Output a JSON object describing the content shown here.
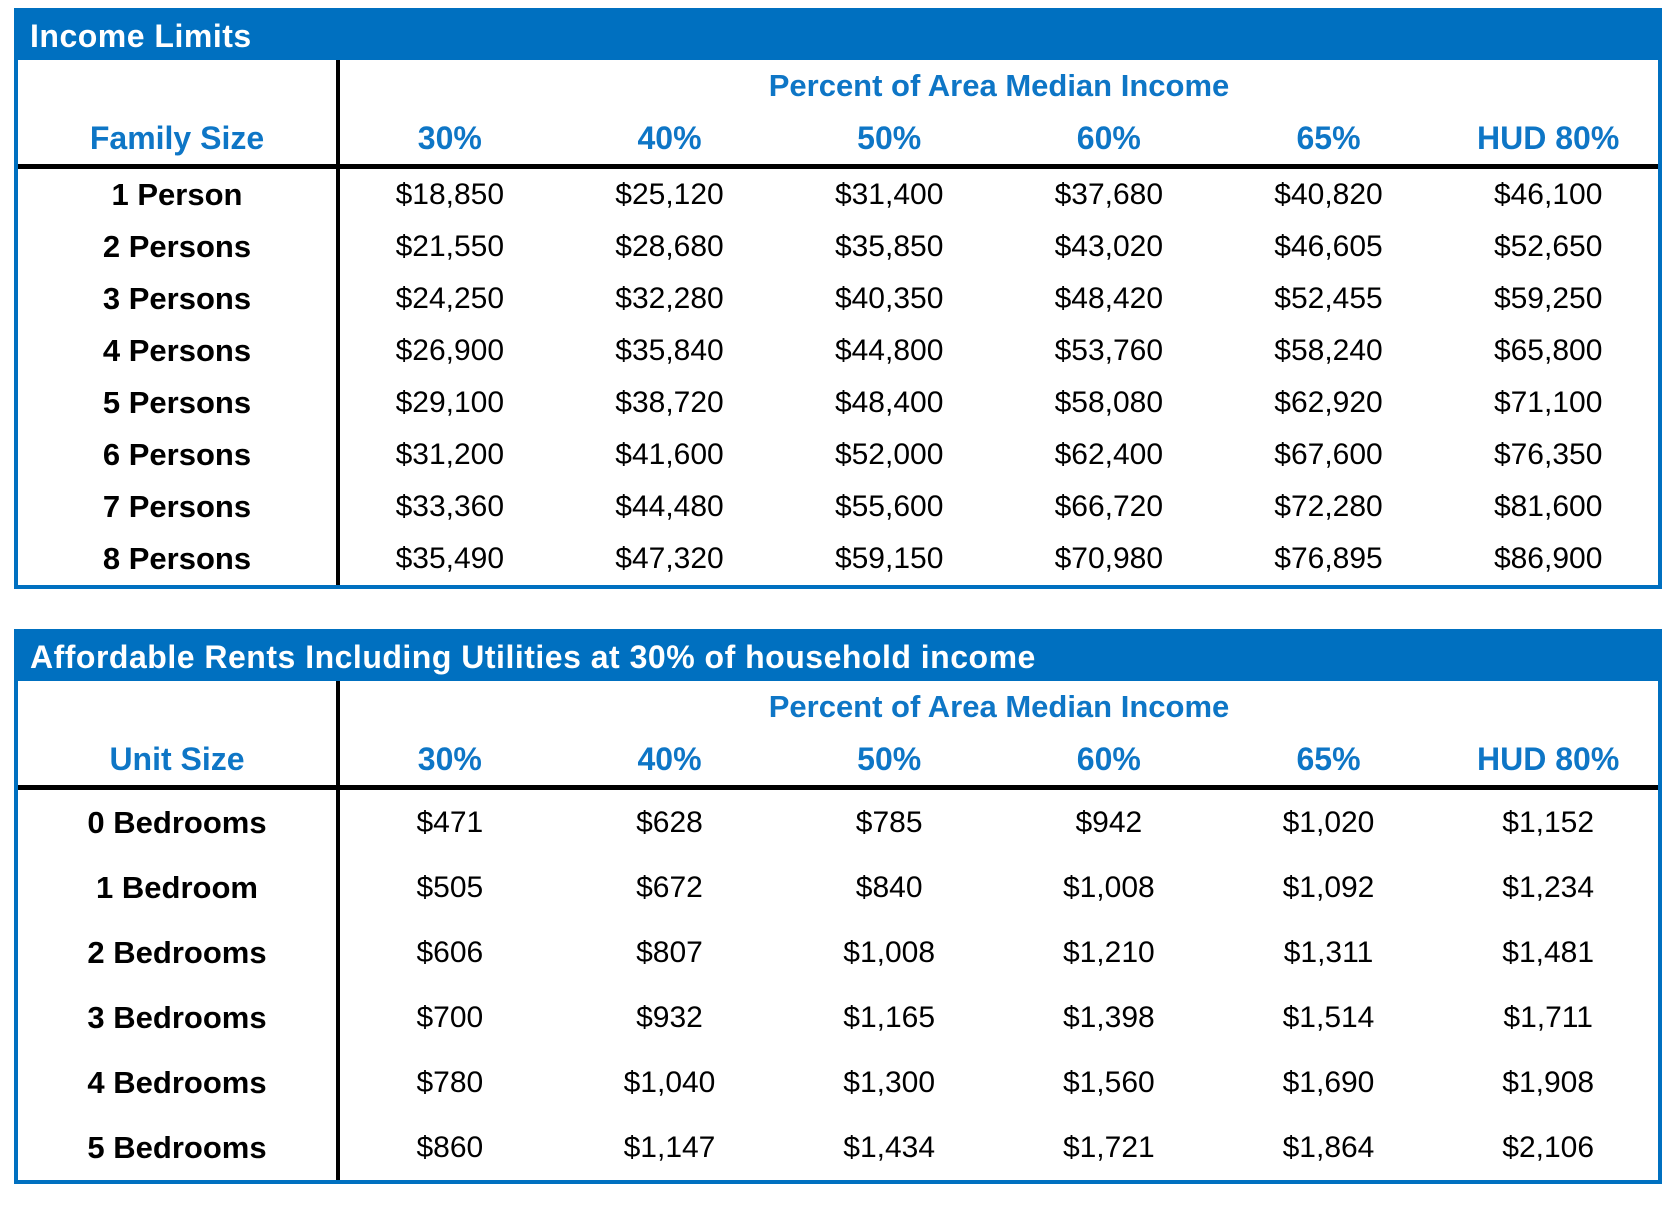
{
  "colors": {
    "band_blue": "#0070C0",
    "header_text_blue": "#0E76C6",
    "rule_black": "#000000"
  },
  "income_table": {
    "title": "Income Limits",
    "group_header": "Percent of Area Median Income",
    "row_header_label": "Family Size",
    "columns": [
      "30%",
      "40%",
      "50%",
      "60%",
      "65%",
      "HUD 80%"
    ],
    "rows": [
      {
        "label": "1 Person",
        "values": [
          "$18,850",
          "$25,120",
          "$31,400",
          "$37,680",
          "$40,820",
          "$46,100"
        ]
      },
      {
        "label": "2 Persons",
        "values": [
          "$21,550",
          "$28,680",
          "$35,850",
          "$43,020",
          "$46,605",
          "$52,650"
        ]
      },
      {
        "label": "3 Persons",
        "values": [
          "$24,250",
          "$32,280",
          "$40,350",
          "$48,420",
          "$52,455",
          "$59,250"
        ]
      },
      {
        "label": "4 Persons",
        "values": [
          "$26,900",
          "$35,840",
          "$44,800",
          "$53,760",
          "$58,240",
          "$65,800"
        ]
      },
      {
        "label": "5 Persons",
        "values": [
          "$29,100",
          "$38,720",
          "$48,400",
          "$58,080",
          "$62,920",
          "$71,100"
        ]
      },
      {
        "label": "6 Persons",
        "values": [
          "$31,200",
          "$41,600",
          "$52,000",
          "$62,400",
          "$67,600",
          "$76,350"
        ]
      },
      {
        "label": "7 Persons",
        "values": [
          "$33,360",
          "$44,480",
          "$55,600",
          "$66,720",
          "$72,280",
          "$81,600"
        ]
      },
      {
        "label": "8 Persons",
        "values": [
          "$35,490",
          "$47,320",
          "$59,150",
          "$70,980",
          "$76,895",
          "$86,900"
        ]
      }
    ]
  },
  "rents_table": {
    "title": "Affordable Rents Including Utilities at 30% of household income",
    "group_header": "Percent of Area Median Income",
    "row_header_label": "Unit Size",
    "columns": [
      "30%",
      "40%",
      "50%",
      "60%",
      "65%",
      "HUD 80%"
    ],
    "rows": [
      {
        "label": "0 Bedrooms",
        "values": [
          "$471",
          "$628",
          "$785",
          "$942",
          "$1,020",
          "$1,152"
        ]
      },
      {
        "label": "1 Bedroom",
        "values": [
          "$505",
          "$672",
          "$840",
          "$1,008",
          "$1,092",
          "$1,234"
        ]
      },
      {
        "label": "2 Bedrooms",
        "values": [
          "$606",
          "$807",
          "$1,008",
          "$1,210",
          "$1,311",
          "$1,481"
        ]
      },
      {
        "label": "3 Bedrooms",
        "values": [
          "$700",
          "$932",
          "$1,165",
          "$1,398",
          "$1,514",
          "$1,711"
        ]
      },
      {
        "label": "4 Bedrooms",
        "values": [
          "$780",
          "$1,040",
          "$1,300",
          "$1,560",
          "$1,690",
          "$1,908"
        ]
      },
      {
        "label": "5 Bedrooms",
        "values": [
          "$860",
          "$1,147",
          "$1,434",
          "$1,721",
          "$1,864",
          "$2,106"
        ]
      }
    ]
  }
}
